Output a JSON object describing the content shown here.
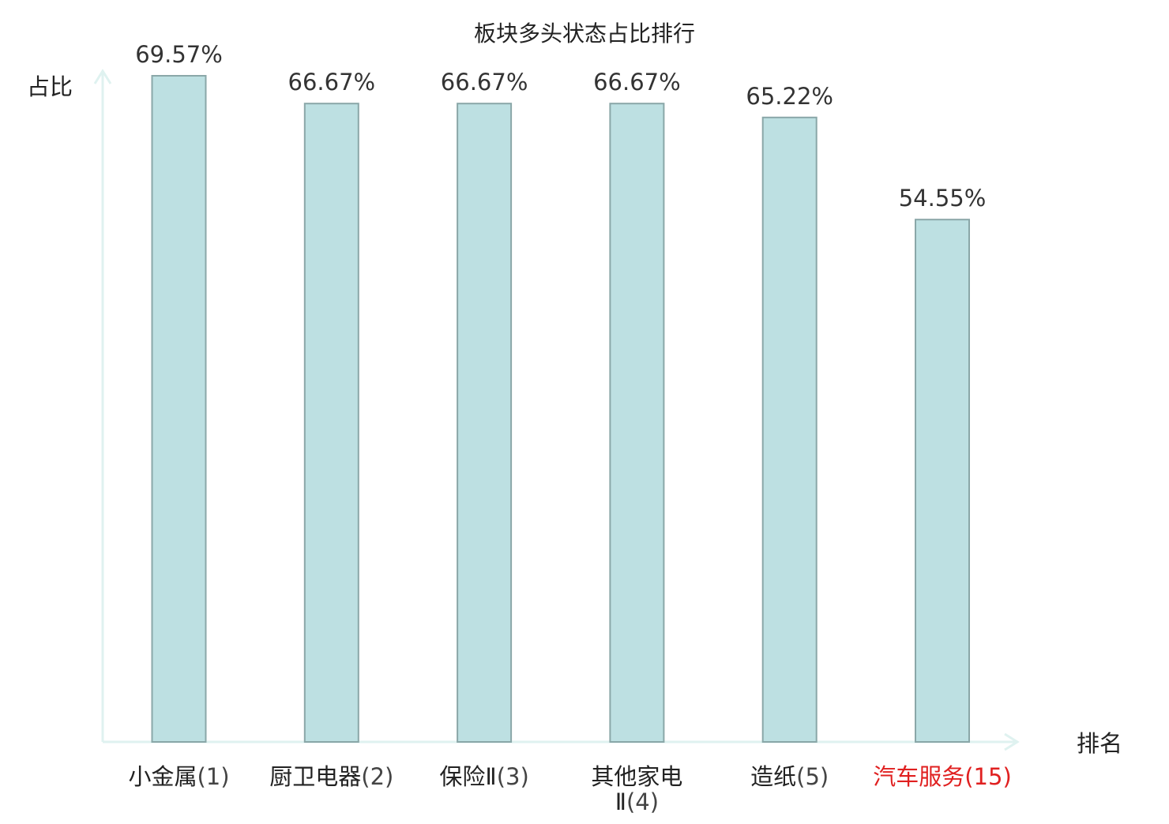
{
  "chart_data": {
    "type": "bar",
    "title": "板块多头状态占比排行",
    "ylabel": "占比",
    "xlabel": "排名",
    "categories": [
      {
        "name": "小金属",
        "rank": "(1)"
      },
      {
        "name": "厨卫电器",
        "rank": "(2)"
      },
      {
        "name": "保险Ⅱ",
        "rank": "(3)"
      },
      {
        "name": "其他家电",
        "name_line2": "Ⅱ",
        "rank": "(4)"
      },
      {
        "name": "造纸",
        "rank": "(5)"
      },
      {
        "name": "汽车服务",
        "rank": "(15)",
        "highlight": true
      }
    ],
    "values": [
      69.57,
      66.67,
      66.67,
      66.67,
      65.22,
      54.55
    ],
    "value_labels": [
      "69.57%",
      "66.67%",
      "66.67%",
      "66.67%",
      "65.22%",
      "54.55%"
    ],
    "ylim": [
      0,
      69.57
    ],
    "grid": false,
    "colors": {
      "bar_fill": "#bde0e2",
      "bar_stroke": "#8aa7a8",
      "axis": "#dff2f0",
      "label_text": "#222222",
      "value_text": "#333333",
      "rank_text": "#444444",
      "highlight_text": "#e02020"
    }
  }
}
